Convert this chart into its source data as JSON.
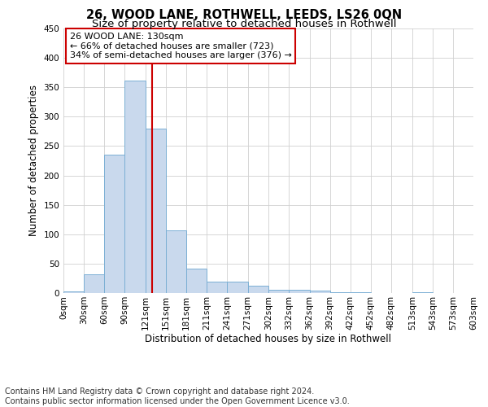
{
  "title": "26, WOOD LANE, ROTHWELL, LEEDS, LS26 0QN",
  "subtitle": "Size of property relative to detached houses in Rothwell",
  "xlabel": "Distribution of detached houses by size in Rothwell",
  "ylabel": "Number of detached properties",
  "bar_left_edges": [
    0,
    30,
    60,
    90,
    121,
    151,
    181,
    211,
    241,
    271,
    302,
    332,
    362,
    392,
    422,
    452,
    482,
    513,
    543,
    573
  ],
  "bar_heights": [
    3,
    32,
    236,
    362,
    280,
    107,
    41,
    19,
    19,
    13,
    6,
    5,
    4,
    1,
    1,
    0,
    0,
    1,
    0,
    0
  ],
  "bar_color": "#c9d9ed",
  "bar_edgecolor": "#7bafd4",
  "vline_x": 130,
  "vline_color": "#cc0000",
  "ylim": [
    0,
    450
  ],
  "yticks": [
    0,
    50,
    100,
    150,
    200,
    250,
    300,
    350,
    400,
    450
  ],
  "xtick_labels": [
    "0sqm",
    "30sqm",
    "60sqm",
    "90sqm",
    "121sqm",
    "151sqm",
    "181sqm",
    "211sqm",
    "241sqm",
    "271sqm",
    "302sqm",
    "332sqm",
    "362sqm",
    "392sqm",
    "422sqm",
    "452sqm",
    "482sqm",
    "513sqm",
    "543sqm",
    "573sqm",
    "603sqm"
  ],
  "xtick_positions": [
    0,
    30,
    60,
    90,
    121,
    151,
    181,
    211,
    241,
    271,
    302,
    332,
    362,
    392,
    422,
    452,
    482,
    513,
    543,
    573,
    603
  ],
  "annotation_title": "26 WOOD LANE: 130sqm",
  "annotation_line1": "← 66% of detached houses are smaller (723)",
  "annotation_line2": "34% of semi-detached houses are larger (376) →",
  "annotation_box_color": "#ffffff",
  "annotation_box_edgecolor": "#cc0000",
  "footer1": "Contains HM Land Registry data © Crown copyright and database right 2024.",
  "footer2": "Contains public sector information licensed under the Open Government Licence v3.0.",
  "background_color": "#ffffff",
  "grid_color": "#d0d0d0",
  "title_fontsize": 10.5,
  "subtitle_fontsize": 9.5,
  "axis_label_fontsize": 8.5,
  "tick_fontsize": 7.5,
  "annotation_fontsize": 8,
  "footer_fontsize": 7
}
